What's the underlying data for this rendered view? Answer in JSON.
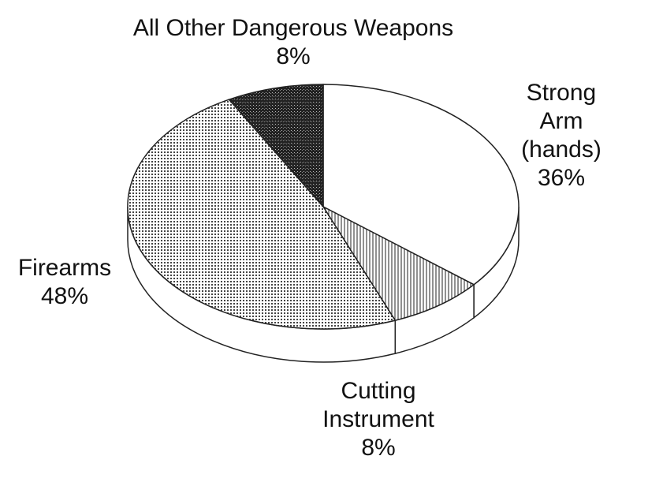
{
  "chart_data": {
    "type": "pie",
    "categories": [
      "Strong\nArm (hands)",
      "Cutting\nInstrument",
      "Firearms",
      "All Other Dangerous Weapons"
    ],
    "values": [
      36,
      8,
      48,
      8
    ],
    "value_labels": [
      "36%",
      "8%",
      "48%",
      "8%"
    ]
  }
}
